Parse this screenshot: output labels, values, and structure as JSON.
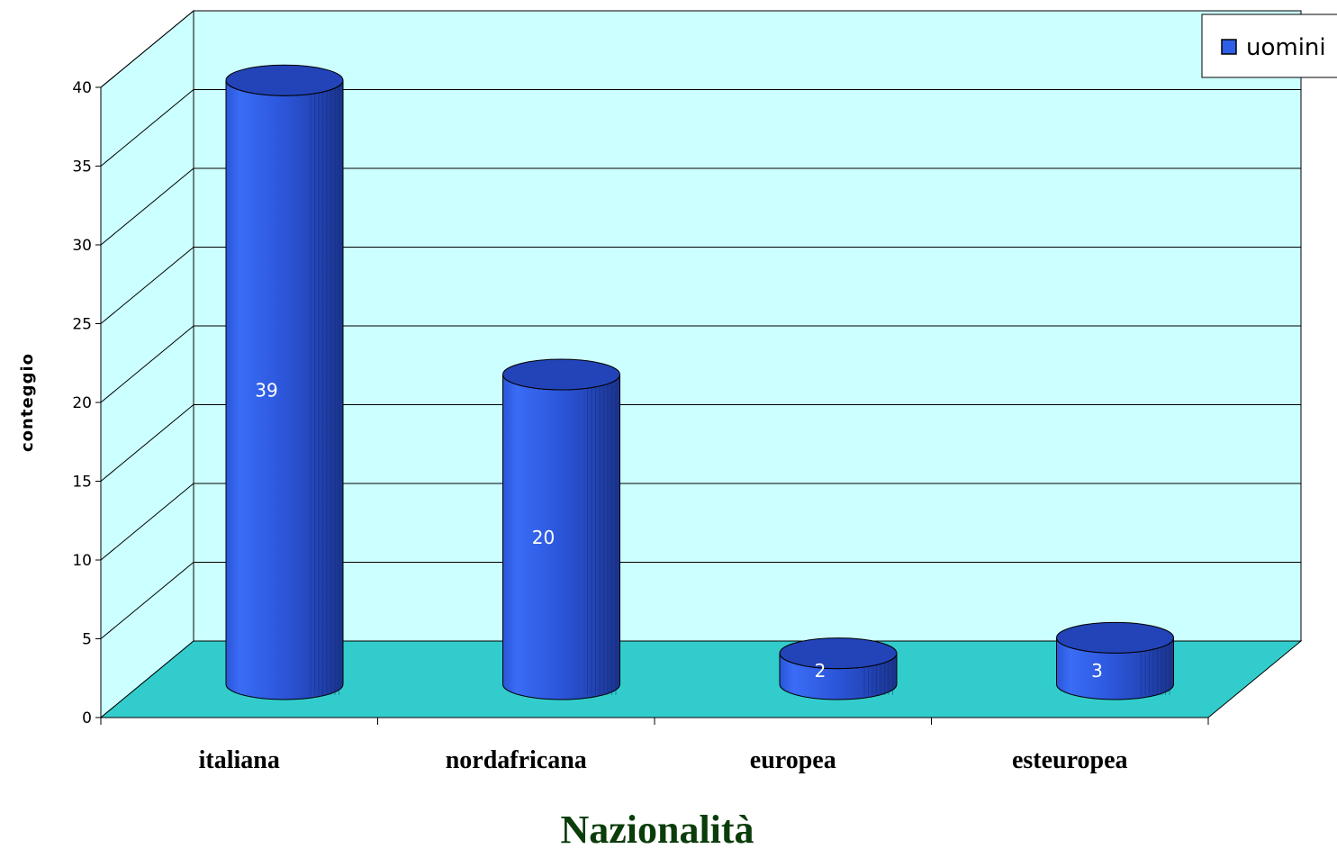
{
  "chart_data": {
    "type": "bar",
    "style": "3d-cylinder",
    "categories": [
      "italiana",
      "nordafricana",
      "europea",
      "esteuropea"
    ],
    "series": [
      {
        "name": "uomini",
        "values": [
          39,
          20,
          2,
          3
        ],
        "color": "#2f5fe8"
      }
    ],
    "xlabel": "Nazionalità",
    "ylabel": "conteggio",
    "ylim": [
      0,
      40
    ],
    "yticks": [
      0,
      5,
      10,
      15,
      20,
      25,
      30,
      35,
      40
    ],
    "grid": true,
    "legend_position": "top-right",
    "data_labels": true,
    "colors": {
      "wall": "#ccffff",
      "floor": "#33cccc",
      "bar": "#2f5fe8",
      "bar_top": "#2244b8",
      "axis_title": "#0b3d0b"
    }
  }
}
